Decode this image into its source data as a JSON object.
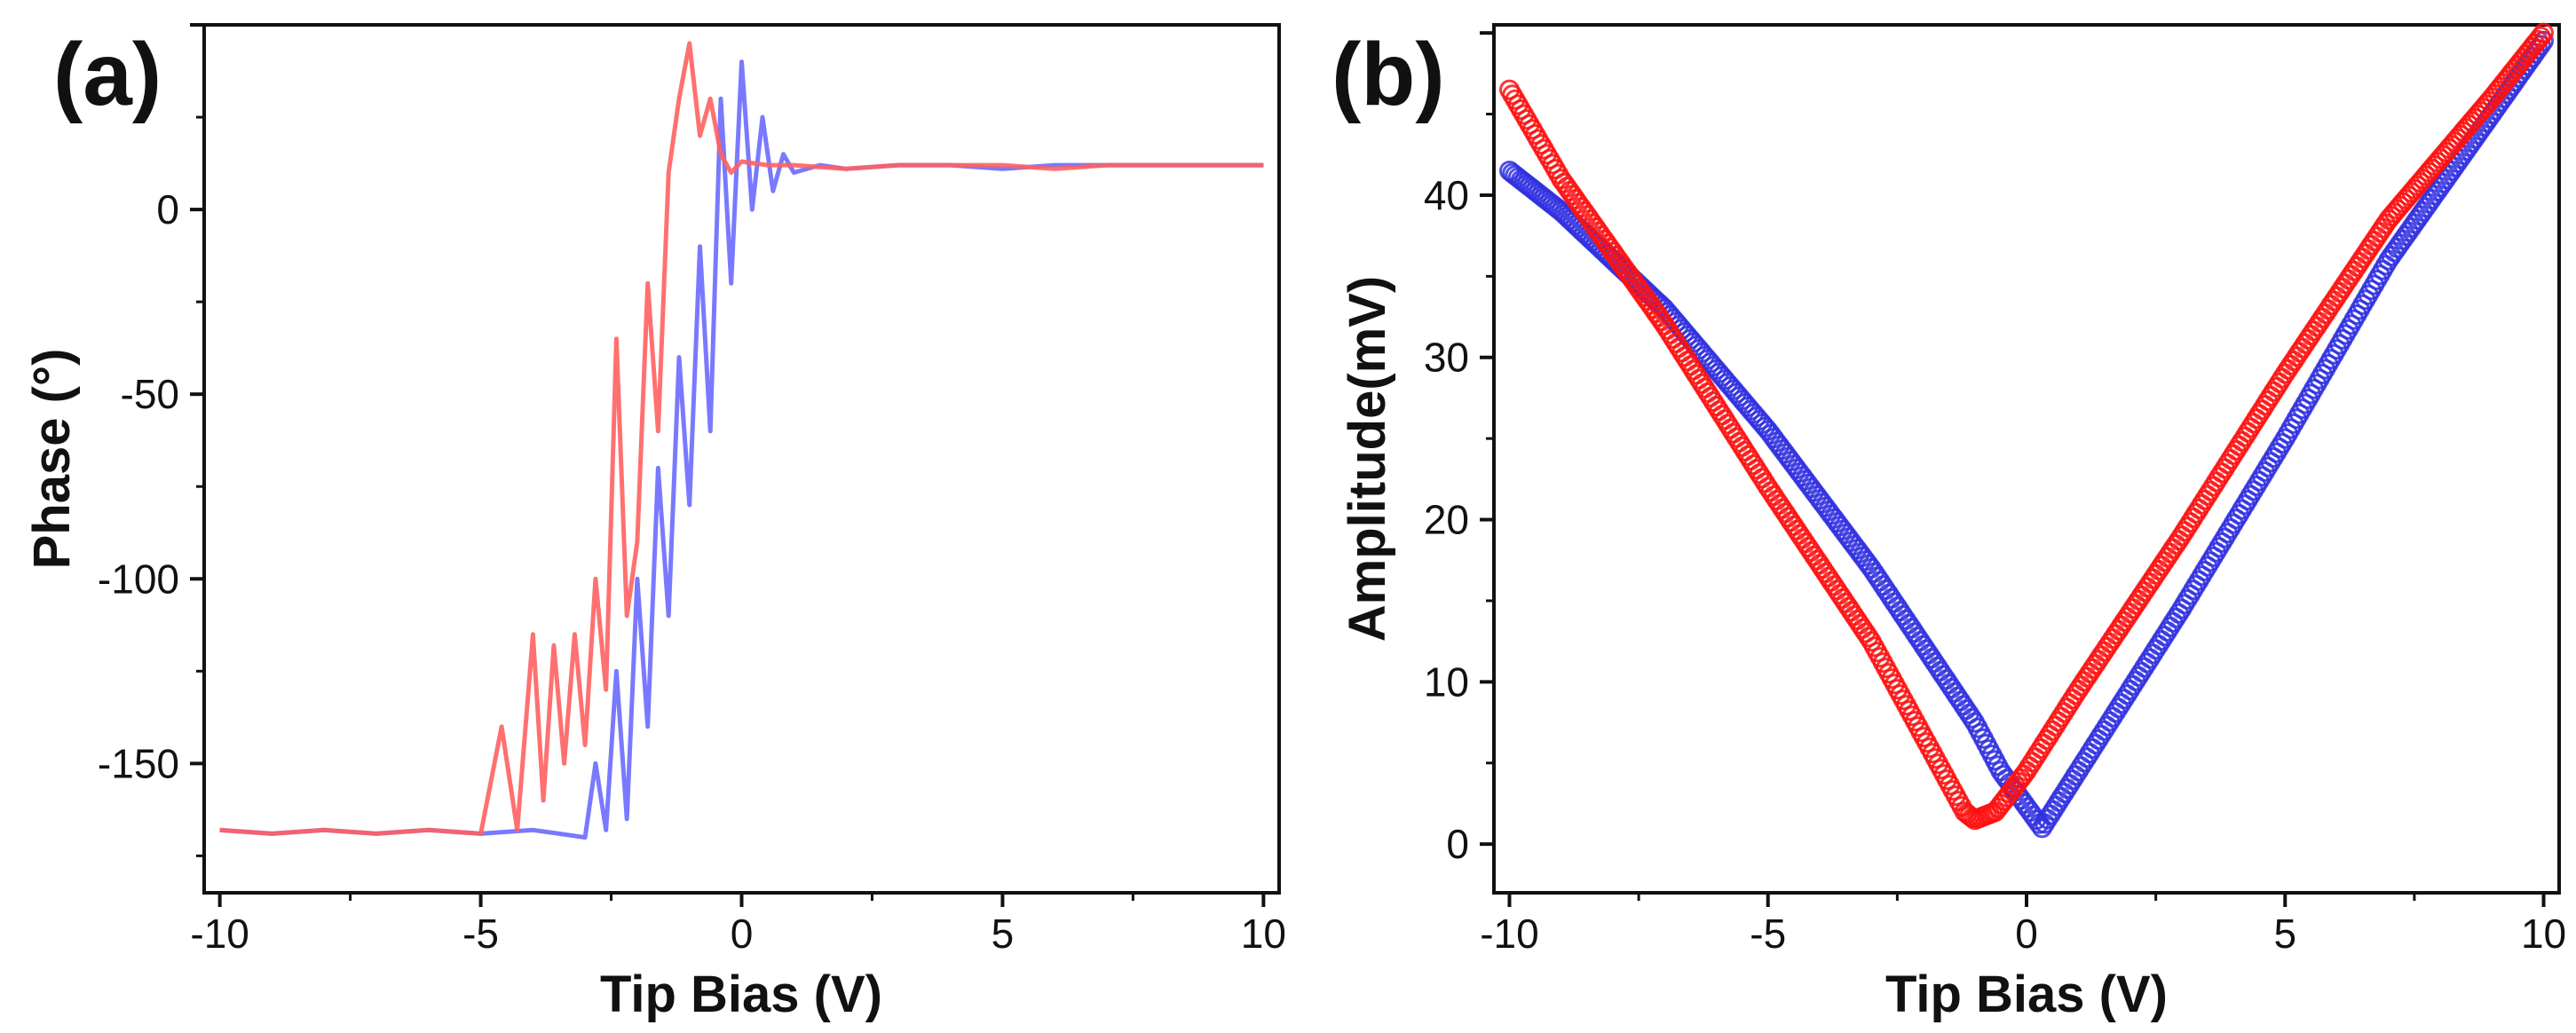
{
  "chart_data": [
    {
      "panel_label": "(a)",
      "type": "line",
      "xlabel": "Tip Bias (V)",
      "ylabel": "Phase (°)",
      "xlim": [
        -10.3,
        10.3
      ],
      "ylim": [
        -185,
        50
      ],
      "xticks": [
        -10,
        -5,
        0,
        5,
        10
      ],
      "xtick_labels": [
        "-10",
        "-5",
        "0",
        "5",
        "10"
      ],
      "yticks": [
        -150,
        -100,
        -50,
        0
      ],
      "ytick_labels": [
        "-150",
        "-100",
        "-50",
        "0"
      ],
      "series": [
        {
          "name": "blue sweep",
          "color": "#6a6aff",
          "x": [
            -10,
            -9,
            -8,
            -7,
            -6,
            -5,
            -4,
            -3.5,
            -3,
            -2.8,
            -2.6,
            -2.4,
            -2.2,
            -2.0,
            -1.8,
            -1.6,
            -1.4,
            -1.2,
            -1.0,
            -0.8,
            -0.6,
            -0.4,
            -0.2,
            0,
            0.2,
            0.4,
            0.6,
            0.8,
            1.0,
            1.5,
            2,
            3,
            4,
            5,
            6,
            7,
            8,
            9,
            10
          ],
          "y": [
            -168,
            -169,
            -168,
            -169,
            -168,
            -169,
            -168,
            -169,
            -170,
            -150,
            -168,
            -125,
            -165,
            -100,
            -140,
            -70,
            -110,
            -40,
            -80,
            -10,
            -60,
            30,
            -20,
            40,
            0,
            25,
            5,
            15,
            10,
            12,
            11,
            12,
            12,
            11,
            12,
            12,
            12,
            12,
            12
          ]
        },
        {
          "name": "red sweep",
          "color": "#ff6060",
          "x": [
            -10,
            -9,
            -8,
            -7,
            -6,
            -5,
            -4.6,
            -4.3,
            -4.0,
            -3.8,
            -3.6,
            -3.4,
            -3.2,
            -3.0,
            -2.8,
            -2.6,
            -2.4,
            -2.2,
            -2.0,
            -1.8,
            -1.6,
            -1.4,
            -1.2,
            -1.0,
            -0.8,
            -0.6,
            -0.4,
            -0.2,
            0,
            0.5,
            1,
            2,
            3,
            4,
            5,
            6,
            7,
            8,
            9,
            10
          ],
          "y": [
            -168,
            -169,
            -168,
            -169,
            -168,
            -169,
            -140,
            -168,
            -115,
            -160,
            -118,
            -150,
            -115,
            -145,
            -100,
            -130,
            -35,
            -110,
            -90,
            -20,
            -60,
            10,
            30,
            45,
            20,
            30,
            15,
            10,
            13,
            12,
            12,
            11,
            12,
            12,
            12,
            11,
            12,
            12,
            12,
            12
          ]
        }
      ]
    },
    {
      "panel_label": "(b)",
      "type": "scatter",
      "xlabel": "Tip Bias (V)",
      "ylabel": "Amplitude(mV)",
      "xlim": [
        -10.3,
        10.3
      ],
      "ylim": [
        -3,
        50.5
      ],
      "xticks": [
        -10,
        -5,
        0,
        5,
        10
      ],
      "xtick_labels": [
        "-10",
        "-5",
        "0",
        "5",
        "10"
      ],
      "yticks": [
        0,
        10,
        20,
        30,
        40
      ],
      "ytick_labels": [
        "0",
        "10",
        "20",
        "30",
        "40"
      ],
      "series": [
        {
          "name": "blue sweep",
          "color": "#3030e0",
          "x": [
            -10,
            -9,
            -7,
            -5,
            -3,
            -1,
            -0.5,
            0.3,
            1,
            3,
            5,
            7,
            9,
            10
          ],
          "y": [
            41.5,
            39,
            33,
            25.5,
            17,
            7.5,
            4.5,
            1,
            4.5,
            14.5,
            25,
            36,
            45,
            49.5
          ]
        },
        {
          "name": "red sweep",
          "color": "#ff1010",
          "x": [
            -10,
            -9,
            -7,
            -5,
            -3,
            -1.2,
            -1,
            -0.6,
            0,
            1,
            3,
            5,
            7,
            9,
            10
          ],
          "y": [
            46.5,
            41,
            32,
            22,
            12.5,
            2,
            1.5,
            2,
            4.5,
            9.5,
            19,
            29,
            38.5,
            46,
            50
          ]
        }
      ]
    }
  ]
}
